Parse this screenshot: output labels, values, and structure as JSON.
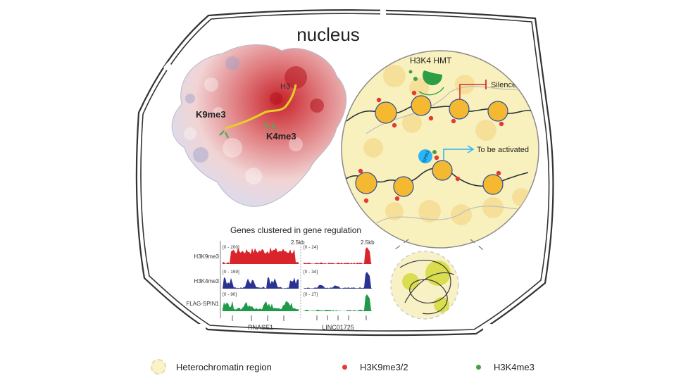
{
  "title": "nucleus",
  "protein": {
    "labels": {
      "h3": "H3",
      "k9": "K9me3",
      "k4": "K4me3"
    }
  },
  "zoom": {
    "hmt_label": "H3K4 HMT",
    "silenced": "Silenced",
    "activated": "To be activated",
    "spin1_label": "SPIN1"
  },
  "tracks": {
    "title": "Genes clustered in gene regulation",
    "scale_label": "2.5kb",
    "rows": [
      {
        "name": "H3K9me3",
        "color": "#d9242b",
        "left_range": "[0 - 200]",
        "right_range": "[0 - 24]"
      },
      {
        "name": "H3K4me3",
        "color": "#2b3391",
        "left_range": "[0 - 159]",
        "right_range": "[0 - 34]"
      },
      {
        "name": "FLAG-SPIN1",
        "color": "#1e9a48",
        "left_range": "[0 - 90]",
        "right_range": "[0 - 27]"
      }
    ],
    "genes": {
      "left": "RNASE1",
      "right": "LINC01725"
    }
  },
  "legend": {
    "items": [
      {
        "label": "Heterochromatin region",
        "kind": "region"
      },
      {
        "label": "H3K9me3/2",
        "kind": "dot",
        "color": "#e53935"
      },
      {
        "label": "H3K4me3",
        "kind": "dot",
        "color": "#43a047"
      }
    ]
  }
}
